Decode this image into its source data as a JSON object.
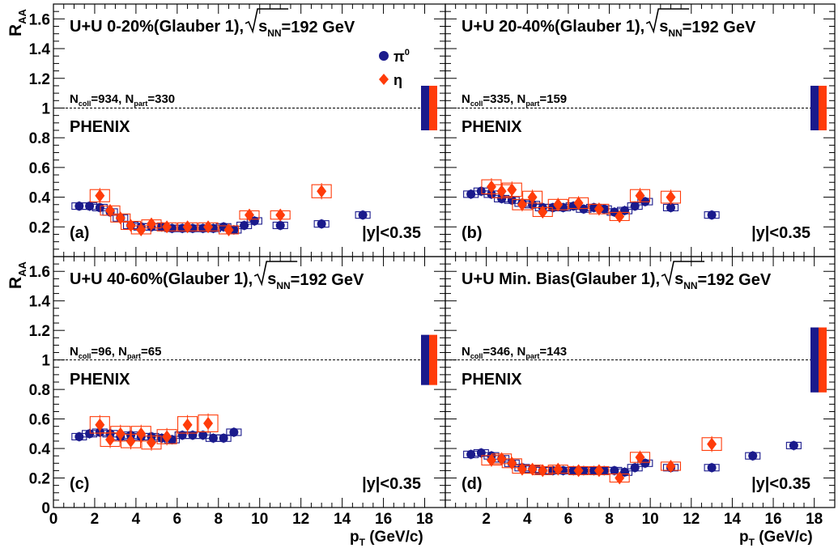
{
  "figure": {
    "ylabel": "R",
    "ylabel_sub": "AA",
    "xlabel": "p",
    "xlabel_sub": "T",
    "xlabel_unit": " (GeV/c)",
    "pi0_legend": "π",
    "pi0_sup": "0",
    "eta_legend": "η",
    "experiment": "PHENIX",
    "rapidity": "|y|<0.35",
    "energy_label": "=192 GeV",
    "sqrt_label": "s",
    "sqrt_sub": "NN"
  },
  "chart_data": [
    {
      "type": "scatter",
      "panel": "(a)",
      "title": "U+U   0-20%(Glauber 1),",
      "ncoll_label": "=934,",
      "npart_label": "=330",
      "xlabel": "p_T (GeV/c)",
      "ylabel": "R_AA",
      "xlim": [
        0,
        19
      ],
      "ylim": [
        0,
        1.7
      ],
      "xticks": [
        "0",
        "2",
        "4",
        "6",
        "8",
        "10",
        "12",
        "14",
        "16",
        "18"
      ],
      "yticks": [
        "0",
        "0.2",
        "0.4",
        "0.6",
        "0.8",
        "1",
        "1.2",
        "1.4",
        "1.6"
      ],
      "reference_line": 1,
      "global_uncertainty": {
        "pi0": [
          0.85,
          1.15
        ],
        "eta": [
          0.85,
          1.15
        ]
      },
      "series": [
        {
          "name": "π0",
          "color": "#1a1a8c",
          "marker": "circle",
          "points": [
            [
              1.25,
              0.34
            ],
            [
              1.75,
              0.34
            ],
            [
              2.25,
              0.33
            ],
            [
              2.75,
              0.3
            ],
            [
              3.25,
              0.26
            ],
            [
              3.75,
              0.21
            ],
            [
              4.25,
              0.2
            ],
            [
              4.75,
              0.2
            ],
            [
              5.25,
              0.2
            ],
            [
              5.75,
              0.19
            ],
            [
              6.25,
              0.19
            ],
            [
              6.75,
              0.19
            ],
            [
              7.25,
              0.19
            ],
            [
              7.75,
              0.19
            ],
            [
              8.25,
              0.2
            ],
            [
              8.75,
              0.18
            ],
            [
              9.25,
              0.21
            ],
            [
              9.75,
              0.24
            ],
            [
              11,
              0.21
            ],
            [
              13,
              0.22
            ],
            [
              15,
              0.28
            ]
          ]
        },
        {
          "name": "η",
          "color": "#ff3c0a",
          "marker": "diamond",
          "points": [
            [
              2.25,
              0.41
            ],
            [
              2.75,
              0.31
            ],
            [
              3.25,
              0.26
            ],
            [
              3.75,
              0.21
            ],
            [
              4.25,
              0.18
            ],
            [
              4.75,
              0.22
            ],
            [
              5.5,
              0.2
            ],
            [
              6.5,
              0.2
            ],
            [
              7.5,
              0.2
            ],
            [
              8.5,
              0.18
            ],
            [
              9.5,
              0.28
            ],
            [
              11,
              0.28
            ],
            [
              13,
              0.44
            ]
          ]
        }
      ]
    },
    {
      "type": "scatter",
      "panel": "(b)",
      "title": "U+U 20-40%(Glauber 1),",
      "ncoll_label": "=335,",
      "npart_label": "=159",
      "xlabel": "p_T (GeV/c)",
      "ylabel": "R_AA",
      "xlim": [
        0,
        19
      ],
      "ylim": [
        0,
        1.7
      ],
      "reference_line": 1,
      "global_uncertainty": {
        "pi0": [
          0.85,
          1.15
        ],
        "eta": [
          0.85,
          1.15
        ]
      },
      "series": [
        {
          "name": "π0",
          "color": "#1a1a8c",
          "marker": "circle",
          "points": [
            [
              1.25,
              0.42
            ],
            [
              1.75,
              0.44
            ],
            [
              2.25,
              0.42
            ],
            [
              2.75,
              0.39
            ],
            [
              3.25,
              0.38
            ],
            [
              3.75,
              0.36
            ],
            [
              4.25,
              0.35
            ],
            [
              4.75,
              0.33
            ],
            [
              5.25,
              0.33
            ],
            [
              5.75,
              0.33
            ],
            [
              6.25,
              0.34
            ],
            [
              6.75,
              0.32
            ],
            [
              7.25,
              0.33
            ],
            [
              7.75,
              0.32
            ],
            [
              8.25,
              0.3
            ],
            [
              8.75,
              0.31
            ],
            [
              9.25,
              0.34
            ],
            [
              9.75,
              0.37
            ],
            [
              11,
              0.33
            ],
            [
              13,
              0.28
            ]
          ]
        },
        {
          "name": "η",
          "color": "#ff3c0a",
          "marker": "diamond",
          "points": [
            [
              2.25,
              0.47
            ],
            [
              2.75,
              0.44
            ],
            [
              3.25,
              0.45
            ],
            [
              3.75,
              0.35
            ],
            [
              4.25,
              0.4
            ],
            [
              4.75,
              0.3
            ],
            [
              5.5,
              0.35
            ],
            [
              6.5,
              0.36
            ],
            [
              7.5,
              0.32
            ],
            [
              8.5,
              0.27
            ],
            [
              9.5,
              0.41
            ],
            [
              11,
              0.4
            ]
          ]
        }
      ]
    },
    {
      "type": "scatter",
      "panel": "(c)",
      "title": "U+U 40-60%(Glauber 1),",
      "ncoll_label": "=96,",
      "npart_label": "=65",
      "xlabel": "p_T (GeV/c)",
      "ylabel": "R_AA",
      "xlim": [
        0,
        19
      ],
      "ylim": [
        0,
        1.7
      ],
      "reference_line": 1,
      "global_uncertainty": {
        "pi0": [
          0.83,
          1.17
        ],
        "eta": [
          0.83,
          1.17
        ]
      },
      "series": [
        {
          "name": "π0",
          "color": "#1a1a8c",
          "marker": "circle",
          "points": [
            [
              1.25,
              0.48
            ],
            [
              1.75,
              0.5
            ],
            [
              2.25,
              0.51
            ],
            [
              2.75,
              0.5
            ],
            [
              3.25,
              0.48
            ],
            [
              3.75,
              0.49
            ],
            [
              4.25,
              0.48
            ],
            [
              4.75,
              0.48
            ],
            [
              5.25,
              0.47
            ],
            [
              5.75,
              0.46
            ],
            [
              6.25,
              0.49
            ],
            [
              6.75,
              0.49
            ],
            [
              7.25,
              0.49
            ],
            [
              7.75,
              0.47
            ],
            [
              8.25,
              0.47
            ],
            [
              8.75,
              0.51
            ]
          ]
        },
        {
          "name": "η",
          "color": "#ff3c0a",
          "marker": "diamond",
          "points": [
            [
              2.25,
              0.56
            ],
            [
              2.75,
              0.46
            ],
            [
              3.25,
              0.5
            ],
            [
              3.75,
              0.45
            ],
            [
              4.25,
              0.5
            ],
            [
              4.75,
              0.44
            ],
            [
              5.5,
              0.48
            ],
            [
              6.5,
              0.56
            ],
            [
              7.5,
              0.57
            ]
          ]
        }
      ]
    },
    {
      "type": "scatter",
      "panel": "(d)",
      "title": "U+U Min. Bias(Glauber 1),",
      "ncoll_label": "=346,",
      "npart_label": "=143",
      "xlabel": "p_T (GeV/c)",
      "ylabel": "R_AA",
      "xlim": [
        0,
        19
      ],
      "ylim": [
        0,
        1.7
      ],
      "reference_line": 1,
      "global_uncertainty": {
        "pi0": [
          0.78,
          1.22
        ],
        "eta": [
          0.78,
          1.22
        ]
      },
      "series": [
        {
          "name": "π0",
          "color": "#1a1a8c",
          "marker": "circle",
          "points": [
            [
              1.25,
              0.36
            ],
            [
              1.75,
              0.37
            ],
            [
              2.25,
              0.35
            ],
            [
              2.75,
              0.33
            ],
            [
              3.25,
              0.3
            ],
            [
              3.75,
              0.27
            ],
            [
              4.25,
              0.26
            ],
            [
              4.75,
              0.25
            ],
            [
              5.25,
              0.25
            ],
            [
              5.75,
              0.25
            ],
            [
              6.25,
              0.25
            ],
            [
              6.75,
              0.25
            ],
            [
              7.25,
              0.25
            ],
            [
              7.75,
              0.25
            ],
            [
              8.25,
              0.25
            ],
            [
              8.75,
              0.24
            ],
            [
              9.25,
              0.27
            ],
            [
              9.75,
              0.3
            ],
            [
              11,
              0.27
            ],
            [
              13,
              0.27
            ],
            [
              15,
              0.35
            ],
            [
              17,
              0.42
            ]
          ]
        },
        {
          "name": "η",
          "color": "#ff3c0a",
          "marker": "diamond",
          "points": [
            [
              2.25,
              0.32
            ],
            [
              2.75,
              0.33
            ],
            [
              3.25,
              0.3
            ],
            [
              3.75,
              0.26
            ],
            [
              4.25,
              0.26
            ],
            [
              4.75,
              0.25
            ],
            [
              5.5,
              0.26
            ],
            [
              6.5,
              0.25
            ],
            [
              7.5,
              0.25
            ],
            [
              8.5,
              0.2
            ],
            [
              9.5,
              0.34
            ],
            [
              11,
              0.28
            ],
            [
              13,
              0.43
            ]
          ]
        }
      ]
    }
  ]
}
